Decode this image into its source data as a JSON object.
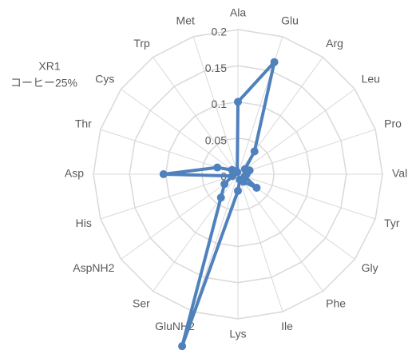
{
  "chart_data": {
    "type": "radar",
    "title": [
      "XR1",
      "コーヒー25%"
    ],
    "categories": [
      "Ala",
      "Glu",
      "Arg",
      "Leu",
      "Pro",
      "Val",
      "Tyr",
      "Gly",
      "Phe",
      "Ile",
      "Lys",
      "GluNH2",
      "Ser",
      "AspNH2",
      "His",
      "Asp",
      "Thr",
      "Cys",
      "Trp",
      "Met"
    ],
    "series": [
      {
        "color": "#4f81bd",
        "values": [
          0.1,
          0.163,
          0.039,
          0.012,
          0.017,
          0.012,
          0.01,
          0.032,
          0.013,
          0.008,
          0.023,
          0.25,
          0.04,
          0.023,
          0.008,
          0.103,
          0.03,
          0.01,
          0.005,
          0.003
        ]
      }
    ],
    "ylim": [
      0,
      0.2
    ],
    "yticks": [
      0,
      0.05,
      0.1,
      0.15,
      0.2
    ],
    "grid": true
  }
}
